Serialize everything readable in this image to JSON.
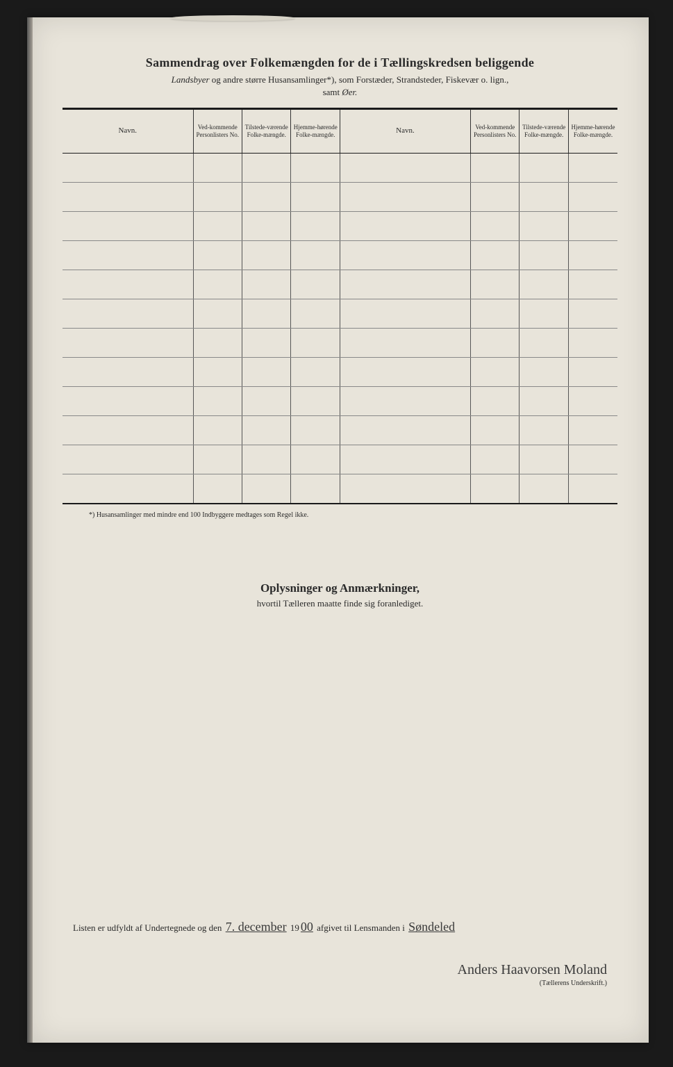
{
  "header": {
    "title": "Sammendrag over Folkemængden for de i Tællingskredsen beliggende",
    "subtitle_pre_em": "Landsbyer",
    "subtitle_mid": " og andre større Husansamlinger*), som Forstæder, Strandsteder, Fiskevær o. lign.,",
    "subtitle2_pre": "samt ",
    "subtitle2_em": "Øer."
  },
  "table": {
    "columns": [
      "Navn.",
      "Ved-kommende Personlisters No.",
      "Tilstede-værende Folke-mængde.",
      "Hjemme-hørende Folke-mængde.",
      "Navn.",
      "Ved-kommende Personlisters No.",
      "Tilstede-værende Folke-mængde.",
      "Hjemme-hørende Folke-mængde."
    ],
    "row_count": 12
  },
  "footnote": "*) Husansamlinger med mindre end 100 Indbyggere medtages som Regel ikke.",
  "section2": {
    "heading": "Oplysninger og Anmærkninger,",
    "sub": "hvortil Tælleren maatte finde sig foranlediget."
  },
  "signature": {
    "line_pre": "Listen er udfyldt af Undertegnede og den ",
    "date_hand": "7. december",
    "year_prefix": " 19",
    "year_hand": "00",
    "line_mid": " afgivet til Lensmanden i ",
    "place_hand": "Søndeled",
    "name_hand": "Anders Haavorsen Moland",
    "caption": "(Tællerens Underskrift.)"
  }
}
